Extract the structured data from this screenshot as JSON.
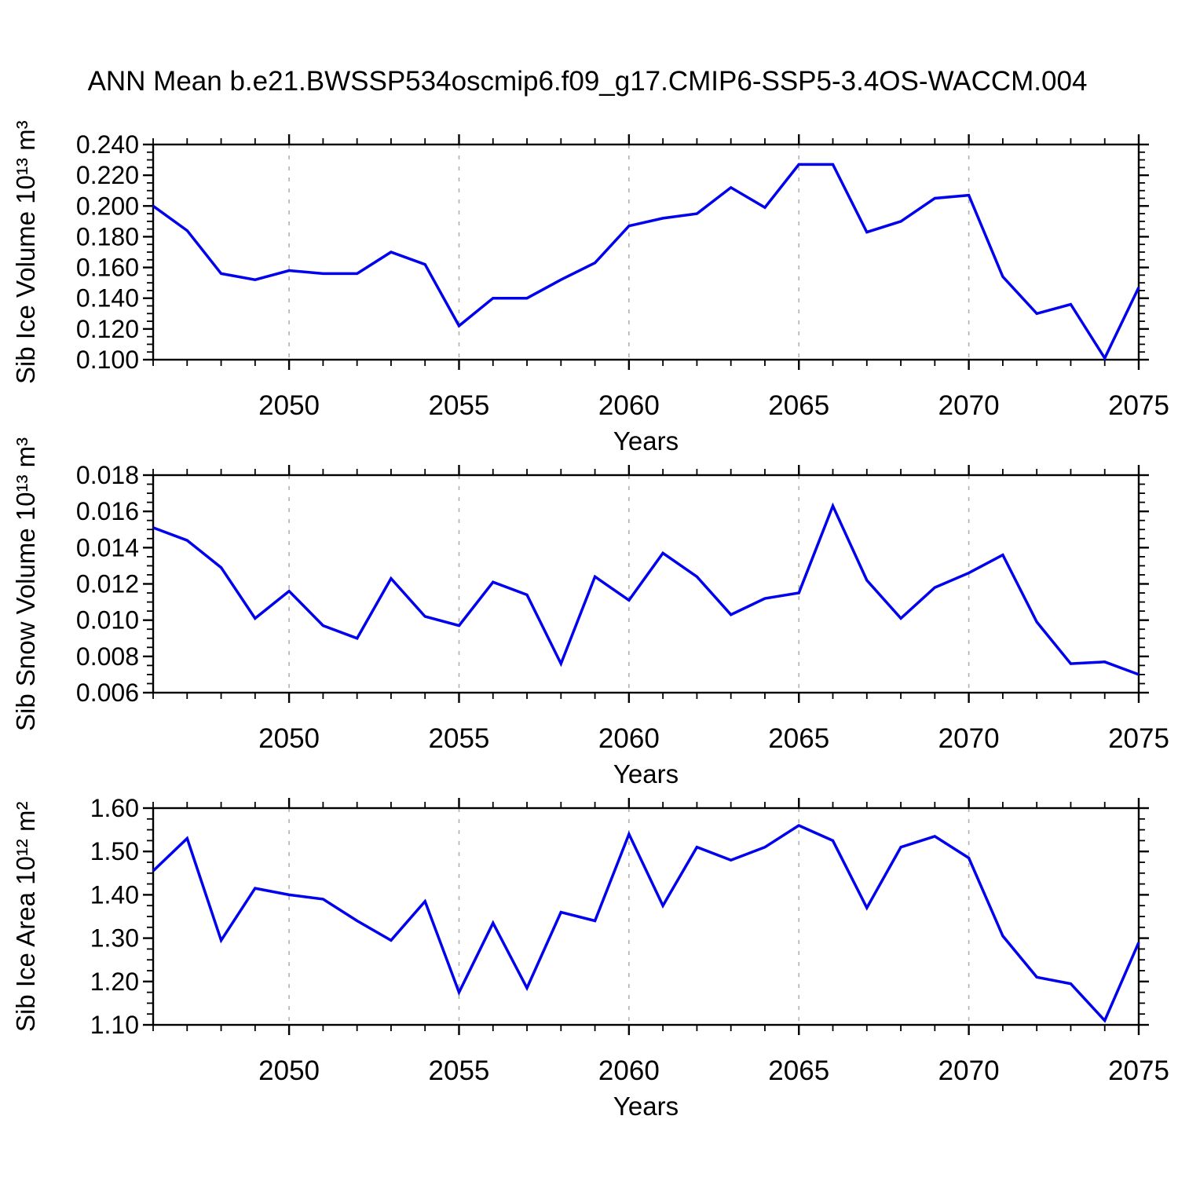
{
  "title": "ANN Mean b.e21.BWSSP534oscmip6.f09_g17.CMIP6-SSP5-3.4OS-WACCM.004",
  "colors": {
    "line": "#0000ee",
    "grid": "#b0b0b0",
    "axis": "#000000"
  },
  "chart_data": [
    {
      "type": "line",
      "ylabel": "Sib Ice Volume 10¹³ m³",
      "xlabel": "Years",
      "x_start": 2046,
      "xlim": [
        2046,
        2075
      ],
      "xticks": [
        2050,
        2055,
        2060,
        2065,
        2070,
        2075
      ],
      "ylim": [
        0.1,
        0.24
      ],
      "ytick_labels": [
        "0.240",
        "0.220",
        "0.200",
        "0.180",
        "0.160",
        "0.140",
        "0.120",
        "0.100"
      ],
      "y_minor_step": 0.005,
      "grid": "vertical-dashed-at-major-xticks",
      "legend": "none",
      "values": [
        0.2,
        0.184,
        0.156,
        0.152,
        0.158,
        0.156,
        0.156,
        0.17,
        0.162,
        0.122,
        0.14,
        0.14,
        0.152,
        0.163,
        0.187,
        0.192,
        0.195,
        0.212,
        0.199,
        0.227,
        0.227,
        0.183,
        0.19,
        0.205,
        0.207,
        0.154,
        0.13,
        0.136,
        0.101,
        0.147
      ]
    },
    {
      "type": "line",
      "ylabel": "Sib Snow Volume 10¹³ m³",
      "xlabel": "Years",
      "x_start": 2046,
      "xlim": [
        2046,
        2075
      ],
      "xticks": [
        2050,
        2055,
        2060,
        2065,
        2070,
        2075
      ],
      "ylim": [
        0.006,
        0.018
      ],
      "ytick_labels": [
        "0.018",
        "0.016",
        "0.014",
        "0.012",
        "0.010",
        "0.008",
        "0.006"
      ],
      "y_minor_step": 0.0005,
      "grid": "vertical-dashed-at-major-xticks",
      "legend": "none",
      "values": [
        0.0151,
        0.0144,
        0.0129,
        0.0101,
        0.0116,
        0.0097,
        0.009,
        0.0123,
        0.0102,
        0.0097,
        0.0121,
        0.0114,
        0.0076,
        0.0124,
        0.0111,
        0.0137,
        0.0124,
        0.0103,
        0.0112,
        0.0115,
        0.0163,
        0.0122,
        0.0101,
        0.0118,
        0.0126,
        0.0136,
        0.0099,
        0.0076,
        0.0077,
        0.007
      ]
    },
    {
      "type": "line",
      "ylabel": "Sib Ice Area 10¹² m²",
      "xlabel": "Years",
      "x_start": 2046,
      "xlim": [
        2046,
        2075
      ],
      "xticks": [
        2050,
        2055,
        2060,
        2065,
        2070,
        2075
      ],
      "ylim": [
        1.1,
        1.6
      ],
      "ytick_labels": [
        "1.60",
        "1.50",
        "1.40",
        "1.30",
        "1.20",
        "1.10"
      ],
      "y_minor_step": 0.025,
      "grid": "vertical-dashed-at-major-xticks",
      "legend": "none",
      "values": [
        1.455,
        1.53,
        1.295,
        1.415,
        1.4,
        1.39,
        1.34,
        1.295,
        1.385,
        1.175,
        1.335,
        1.185,
        1.36,
        1.34,
        1.54,
        1.375,
        1.51,
        1.48,
        1.51,
        1.56,
        1.525,
        1.37,
        1.51,
        1.535,
        1.485,
        1.305,
        1.21,
        1.195,
        1.11,
        1.29
      ]
    }
  ]
}
